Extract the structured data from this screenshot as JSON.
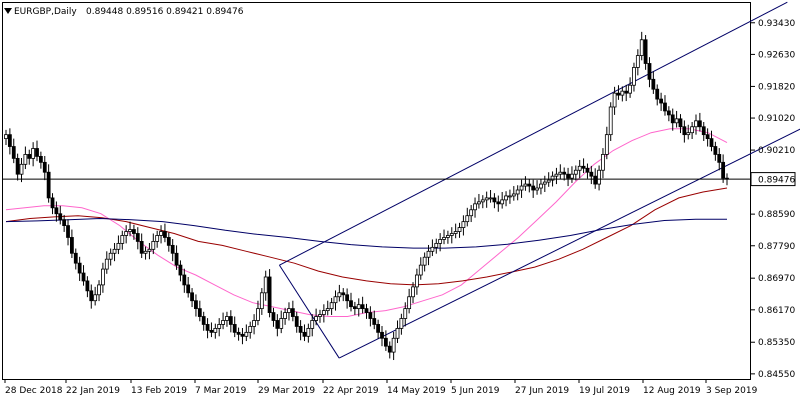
{
  "header": {
    "symbol_line": "EURGBP,Daily",
    "ohlc": "0.89448 0.89516 0.89421 0.89476"
  },
  "current_price_label": "0.89476",
  "colors": {
    "candle_body": "#000000",
    "candle_bull_fill": "#ffffff",
    "ma_fast": "#ff66cc",
    "ma_mid": "#990000",
    "ma_slow": "#000066",
    "trendlines": "#000066",
    "price_line": "#000000",
    "background": "#ffffff"
  },
  "icons": {
    "dropdown": "triangle-down-icon"
  },
  "chart_data": {
    "type": "candlestick",
    "title": "EURGBP,Daily",
    "timeframe": "Daily",
    "ylim": [
      0.8442,
      0.9393
    ],
    "xlabel": "",
    "ylabel": "",
    "grid": false,
    "y_ticks": [
      "0.93430",
      "0.92630",
      "0.91820",
      "0.91020",
      "0.90210",
      "0.89476",
      "0.88590",
      "0.87790",
      "0.86970",
      "0.86170",
      "0.85350",
      "0.84550"
    ],
    "x_ticks": [
      "28 Dec 2018",
      "22 Jan 2019",
      "13 Feb 2019",
      "7 Mar 2019",
      "29 Mar 2019",
      "22 Apr 2019",
      "14 May 2019",
      "5 Jun 2019",
      "27 Jun 2019",
      "19 Jul 2019",
      "12 Aug 2019",
      "3 Sep 2019"
    ],
    "closes": [
      0.906,
      0.903,
      0.9,
      0.896,
      0.8985,
      0.901,
      0.9,
      0.9025,
      0.9005,
      0.899,
      0.8965,
      0.89,
      0.8875,
      0.886,
      0.8845,
      0.883,
      0.88,
      0.876,
      0.8735,
      0.871,
      0.869,
      0.8665,
      0.864,
      0.8655,
      0.868,
      0.872,
      0.8745,
      0.876,
      0.877,
      0.8785,
      0.8805,
      0.8815,
      0.882,
      0.881,
      0.879,
      0.876,
      0.8765,
      0.877,
      0.879,
      0.8805,
      0.8815,
      0.88,
      0.878,
      0.876,
      0.873,
      0.8705,
      0.868,
      0.866,
      0.864,
      0.862,
      0.86,
      0.858,
      0.8565,
      0.856,
      0.857,
      0.858,
      0.859,
      0.86,
      0.858,
      0.856,
      0.8555,
      0.855,
      0.856,
      0.8575,
      0.859,
      0.862,
      0.866,
      0.87,
      0.861,
      0.859,
      0.857,
      0.8595,
      0.861,
      0.862,
      0.86,
      0.8575,
      0.856,
      0.855,
      0.857,
      0.859,
      0.86,
      0.8605,
      0.8615,
      0.862,
      0.8635,
      0.865,
      0.866,
      0.8655,
      0.864,
      0.8625,
      0.862,
      0.863,
      0.862,
      0.861,
      0.8595,
      0.858,
      0.856,
      0.8545,
      0.8525,
      0.851,
      0.8545,
      0.857,
      0.8595,
      0.862,
      0.865,
      0.8675,
      0.8705,
      0.873,
      0.875,
      0.8765,
      0.8775,
      0.8785,
      0.8795,
      0.88,
      0.8805,
      0.881,
      0.8815,
      0.8825,
      0.884,
      0.8855,
      0.887,
      0.8885,
      0.889,
      0.8895,
      0.89,
      0.89,
      0.889,
      0.8885,
      0.8895,
      0.8905,
      0.8905,
      0.891,
      0.892,
      0.893,
      0.8935,
      0.893,
      0.892,
      0.8925,
      0.8935,
      0.894,
      0.8945,
      0.8955,
      0.896,
      0.8965,
      0.896,
      0.895,
      0.896,
      0.897,
      0.898,
      0.8975,
      0.8965,
      0.8955,
      0.8935,
      0.897,
      0.901,
      0.906,
      0.913,
      0.9165,
      0.916,
      0.917,
      0.9165,
      0.9185,
      0.923,
      0.926,
      0.93,
      0.924,
      0.92,
      0.9175,
      0.915,
      0.914,
      0.912,
      0.911,
      0.909,
      0.91,
      0.908,
      0.906,
      0.9065,
      0.908,
      0.9095,
      0.908,
      0.906,
      0.905,
      0.903,
      0.901,
      0.899,
      0.895,
      0.8948
    ],
    "series": [
      {
        "name": "",
        "kind": "moving-average",
        "color": "#ff66cc",
        "values": [
          0.887,
          0.8875,
          0.888,
          0.888,
          0.8875,
          0.886,
          0.883,
          0.879,
          0.8755,
          0.8725,
          0.8705,
          0.868,
          0.8655,
          0.8635,
          0.8625,
          0.8615,
          0.8605,
          0.86,
          0.86,
          0.861,
          0.8615,
          0.8625,
          0.864,
          0.8655,
          0.868,
          0.872,
          0.876,
          0.88,
          0.8845,
          0.889,
          0.894,
          0.8985,
          0.902,
          0.9045,
          0.9065,
          0.9075,
          0.9075,
          0.9065,
          0.904
        ]
      },
      {
        "name": "",
        "kind": "moving-average",
        "color": "#990000",
        "values": [
          0.884,
          0.8848,
          0.8852,
          0.8855,
          0.885,
          0.884,
          0.8825,
          0.881,
          0.879,
          0.878,
          0.8765,
          0.875,
          0.8735,
          0.8715,
          0.87,
          0.869,
          0.8683,
          0.868,
          0.8683,
          0.869,
          0.87,
          0.8712,
          0.8725,
          0.8745,
          0.877,
          0.88,
          0.883,
          0.887,
          0.89,
          0.8915,
          0.8925
        ]
      },
      {
        "name": "",
        "kind": "moving-average",
        "color": "#000066",
        "values": [
          0.884,
          0.8842,
          0.8845,
          0.8848,
          0.8845,
          0.884,
          0.883,
          0.8818,
          0.8808,
          0.88,
          0.879,
          0.8782,
          0.8776,
          0.8773,
          0.8773,
          0.8776,
          0.8783,
          0.8793,
          0.8805,
          0.882,
          0.8833,
          0.8843,
          0.8846,
          0.8846
        ]
      }
    ],
    "trendlines": [
      {
        "name": "",
        "from": [
          0.37,
          0.873
        ],
        "to": [
          1.05,
          0.9395
        ]
      },
      {
        "name": "",
        "from": [
          0.45,
          0.8495
        ],
        "to": [
          1.18,
          0.918
        ]
      },
      {
        "name": "",
        "from": [
          0.37,
          0.873
        ],
        "to": [
          0.45,
          0.8495
        ]
      }
    ],
    "last_price": 0.89476
  }
}
